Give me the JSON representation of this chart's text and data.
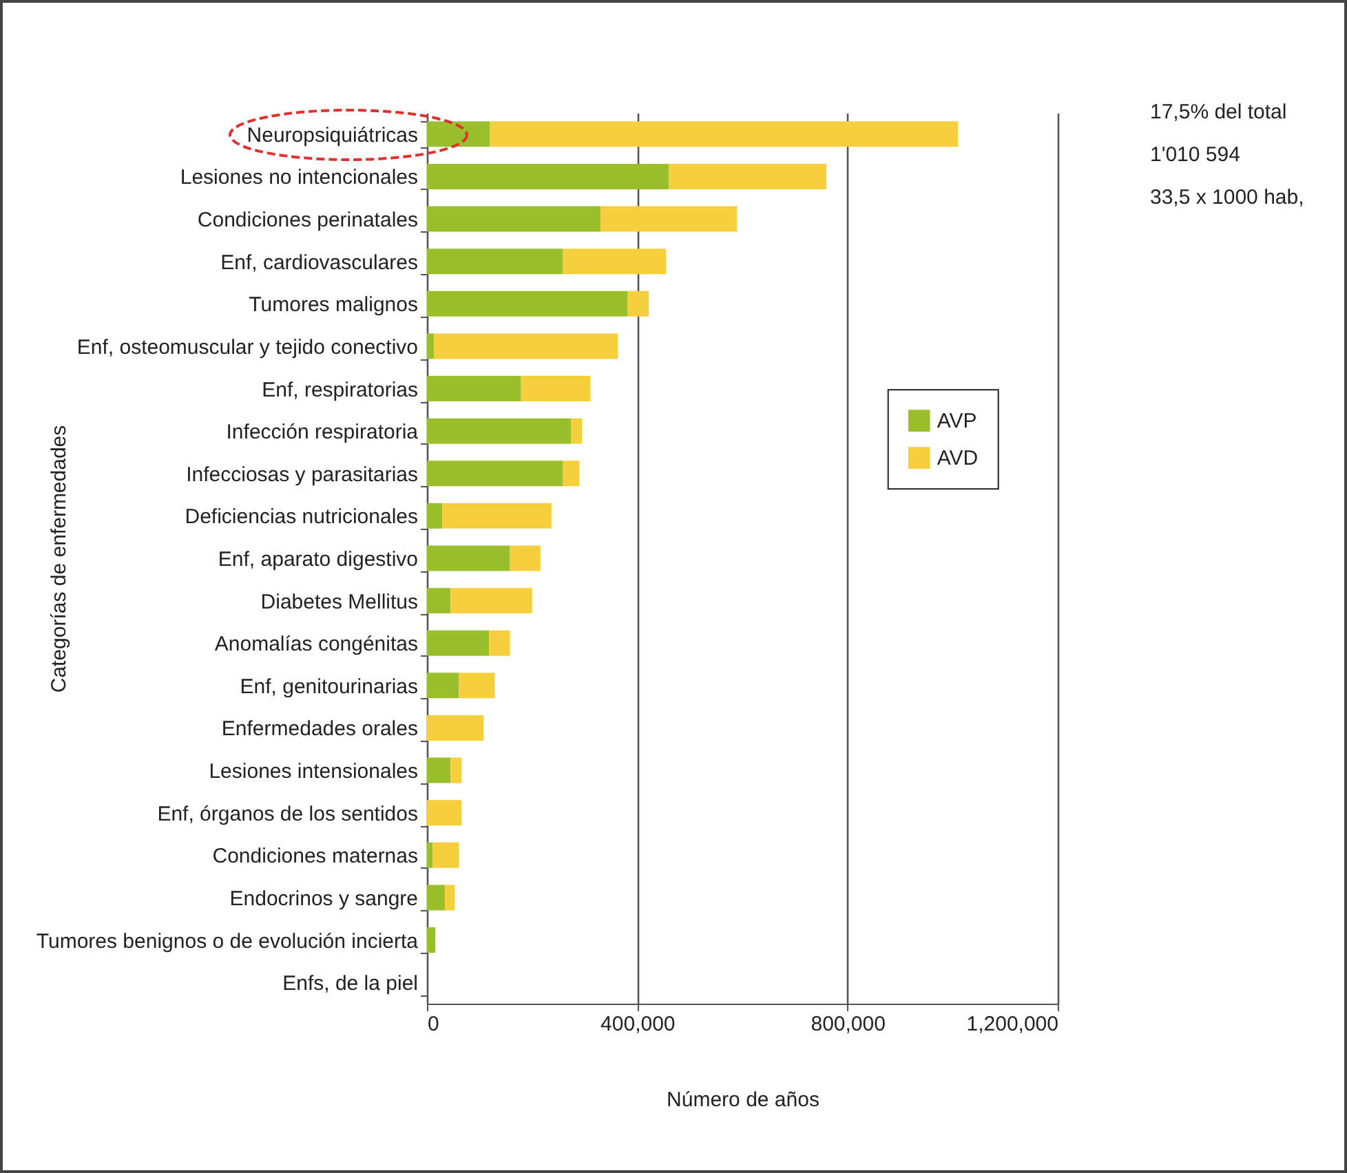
{
  "chart_data": {
    "type": "bar",
    "orientation": "horizontal",
    "stacked": true,
    "xlabel": "Número de años",
    "ylabel": "Categorías de enfermedades",
    "categories": [
      "Neuropsiquiátricas",
      "Lesiones no intencionales",
      "Condiciones perinatales",
      "Enf, cardiovasculares",
      "Tumores malignos",
      "Enf, osteomuscular y tejido conectivo",
      "Enf, respiratorias",
      "Infección respiratoria",
      "Infecciosas y parasitarias",
      "Deficiencias nutricionales",
      "Enf, aparato digestivo",
      "Diabetes Mellitus",
      "Anomalías congénitas",
      "Enf, genitourinarias",
      "Enfermedades orales",
      "Lesiones intensionales",
      "Enf, órganos de los sentidos",
      "Condiciones maternas",
      "Endocrinos y sangre",
      "Tumores benignos o de evolución incierta",
      "Enfs, de la piel"
    ],
    "series": [
      {
        "name": "AVP",
        "color": "#9abf2a",
        "values": [
          120000,
          460000,
          330000,
          258000,
          382000,
          13000,
          179000,
          274000,
          258000,
          29000,
          158000,
          45000,
          118000,
          61000,
          0,
          45000,
          0,
          11000,
          34000,
          16000,
          0
        ]
      },
      {
        "name": "AVD",
        "color": "#f5d03c",
        "values": [
          890000,
          300000,
          260000,
          197000,
          40000,
          350000,
          132000,
          21000,
          32000,
          208000,
          58000,
          155000,
          40000,
          68000,
          108000,
          21000,
          66000,
          50000,
          19000,
          0,
          0
        ]
      }
    ],
    "xlim": [
      0,
      1200000
    ],
    "xticks": [
      0,
      {
        "value": 400000,
        "label": "400,000"
      },
      {
        "value": 800000,
        "label": "800,000"
      },
      {
        "value": 1200000,
        "label": "1,200,000"
      }
    ],
    "grid": "x",
    "legend": "right",
    "annotations": [
      "17,5% del total",
      "1'010 594",
      "33,5 x 1000 hab,"
    ]
  }
}
